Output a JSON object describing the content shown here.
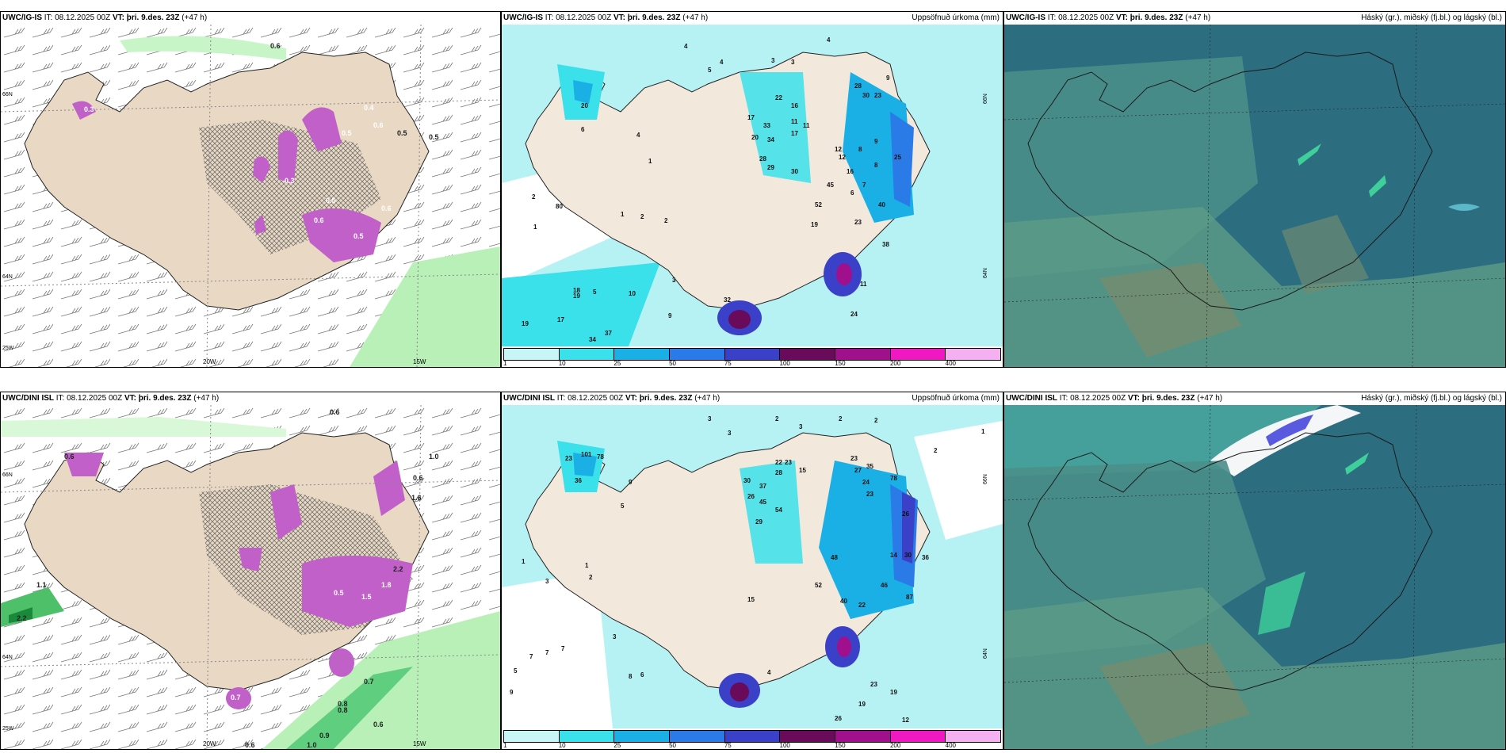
{
  "rows": [
    {
      "wind": {
        "model": "UWC/IG-IS",
        "it_label": "IT:",
        "it_value": "08.12.2025 00Z",
        "vt_label": "VT:",
        "vt_value": "þri. 9.des. 23Z",
        "lead": "(+47 h)",
        "lat_labels": [
          "66N",
          "64N",
          "25W"
        ],
        "lon_labels": [
          "20W",
          "15W"
        ],
        "values": [
          "0.6",
          "0.5",
          "0.4",
          "0.3",
          "0.6",
          "0.5",
          "0.6",
          "0.3",
          "0.5",
          "0.6",
          "0.5",
          "0.5"
        ]
      },
      "precip": {
        "model": "UWC/IG-IS",
        "it_label": "IT:",
        "it_value": "08.12.2025 00Z",
        "vt_label": "VT:",
        "vt_value": "þri. 9.des. 23Z",
        "lead": "(+47 h)",
        "title_right": "Uppsöfnuð úrkoma (mm)",
        "lat_labels": [
          "66N",
          "64N"
        ],
        "values": [
          "4",
          "5",
          "4",
          "3",
          "3",
          "4",
          "20",
          "22",
          "16",
          "28",
          "30",
          "23",
          "9",
          "17",
          "33",
          "11",
          "17",
          "20",
          "34",
          "12",
          "28",
          "29",
          "30",
          "16",
          "45",
          "25",
          "7",
          "52",
          "19",
          "23",
          "40",
          "38",
          "11",
          "32",
          "24",
          "37",
          "34",
          "17",
          "19",
          "18",
          "10",
          "2",
          "1",
          "1",
          "2",
          "80",
          "19",
          "5",
          "18",
          "9",
          "6",
          "4",
          "1",
          "2",
          "3",
          "12",
          "8",
          "8",
          "6",
          "11",
          "9"
        ]
      },
      "cloud": {
        "model": "UWC/IG-IS",
        "it_label": "IT:",
        "it_value": "08.12.2025 00Z",
        "vt_label": "VT:",
        "vt_value": "þri. 9.des. 23Z",
        "lead": "(+47 h)",
        "title_right": "Háský (gr.), miðský (fj.bl.) og lágský (bl.)"
      }
    },
    {
      "wind": {
        "model": "UWC/DINI ISL",
        "it_label": "IT:",
        "it_value": "08.12.2025 00Z",
        "vt_label": "VT:",
        "vt_value": "þri. 9.des. 23Z",
        "lead": "(+47 h)",
        "lat_labels": [
          "66N",
          "64N",
          "25W"
        ],
        "lon_labels": [
          "20W",
          "15W"
        ],
        "values": [
          "0.6",
          "1.0",
          "0.6",
          "2.2",
          "1.1",
          "0.8",
          "0.7",
          "0.6",
          "0.9",
          "1.0",
          "0.6",
          "0.8",
          "1.6",
          "0.5",
          "2.2",
          "1.8",
          "1.5",
          "0.6",
          "0.7"
        ]
      },
      "precip": {
        "model": "UWC/DINI ISL",
        "it_label": "IT:",
        "it_value": "08.12.2025 00Z",
        "vt_label": "VT:",
        "vt_value": "þri. 9.des. 23Z",
        "lead": "(+47 h)",
        "title_right": "Uppsöfnuð úrkoma (mm)",
        "lat_labels": [
          "66N",
          "64N"
        ],
        "values": [
          "3",
          "3",
          "2",
          "2",
          "3",
          "2",
          "1",
          "2",
          "23",
          "101",
          "78",
          "36",
          "9",
          "5",
          "30",
          "37",
          "22",
          "23",
          "28",
          "29",
          "26",
          "45",
          "54",
          "15",
          "23",
          "27",
          "35",
          "78",
          "24",
          "23",
          "26",
          "48",
          "52",
          "40",
          "22",
          "46",
          "14",
          "30",
          "36",
          "87",
          "19",
          "19",
          "12",
          "26",
          "23",
          "15",
          "7",
          "7",
          "7",
          "5",
          "8",
          "9",
          "6",
          "4",
          "3",
          "2",
          "1",
          "1",
          "3"
        ]
      },
      "cloud": {
        "model": "UWC/DINI ISL",
        "it_label": "IT:",
        "it_value": "08.12.2025 00Z",
        "vt_label": "VT:",
        "vt_value": "þri. 9.des. 23Z",
        "lead": "(+47 h)",
        "title_right": "Háský (gr.), miðský (fj.bl.) og lágský (bl.)"
      }
    }
  ],
  "colorbar": {
    "ticks": [
      "1",
      "10",
      "25",
      "50",
      "75",
      "100",
      "150",
      "200",
      "400"
    ],
    "colors": [
      "#c8f5f5",
      "#3ae0ea",
      "#1ab0e6",
      "#2a7be8",
      "#3a40c8",
      "#6a0a5a",
      "#a0108c",
      "#f018c0",
      "#f4b0f0"
    ]
  },
  "colors": {
    "land": "#e8d8c4",
    "sea_precip": "#b6f2f4",
    "cloud_dark": "#2c6d80",
    "cloud_mid": "#4a8e8a",
    "cloud_light": "#5a9a86",
    "magenta": "#c060c8",
    "green": "#b8f0b8"
  }
}
